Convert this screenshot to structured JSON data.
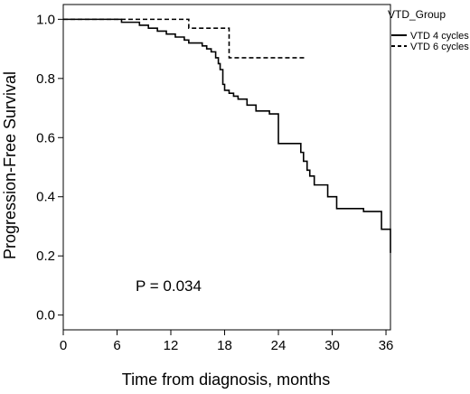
{
  "chart_data": {
    "type": "line",
    "subtype": "kaplan-meier step curve",
    "xlabel": "Time from diagnosis, months",
    "ylabel": "Progression-Free Survival",
    "xlim": [
      0,
      36.5
    ],
    "ylim": [
      -0.05,
      1.05
    ],
    "xticks": [
      0,
      6,
      12,
      18,
      24,
      30,
      36
    ],
    "yticks": [
      0.0,
      0.2,
      0.4,
      0.6,
      0.8,
      1.0
    ],
    "ytick_labels": [
      "0.0",
      "0.2",
      "0.4",
      "0.6",
      "0.8",
      "1.0"
    ],
    "grid": false,
    "legend": {
      "title": "VTD_Group",
      "position": "top-right, outside plot"
    },
    "annotation": "P = 0.034",
    "series": [
      {
        "name": "VTD 4 cycles",
        "style": "solid",
        "x": [
          0,
          6.5,
          8.5,
          9.5,
          10.5,
          11.5,
          12.5,
          13.5,
          14,
          15.5,
          16,
          16.5,
          17,
          17.3,
          17.5,
          17.8,
          18,
          18.5,
          19,
          19.5,
          20.5,
          21.5,
          23,
          24,
          26.5,
          26.8,
          27.2,
          27.5,
          28,
          29.5,
          30.5,
          33.5,
          35.5,
          36.5
        ],
        "y": [
          1.0,
          0.99,
          0.98,
          0.97,
          0.96,
          0.95,
          0.94,
          0.93,
          0.92,
          0.91,
          0.9,
          0.89,
          0.87,
          0.85,
          0.83,
          0.78,
          0.76,
          0.75,
          0.74,
          0.73,
          0.71,
          0.69,
          0.68,
          0.58,
          0.55,
          0.52,
          0.49,
          0.47,
          0.44,
          0.4,
          0.36,
          0.35,
          0.29,
          0.21
        ]
      },
      {
        "name": "VTD 6 cycles",
        "style": "dashed",
        "x": [
          0,
          6.5,
          14,
          18.5,
          27
        ],
        "y": [
          1.0,
          1.0,
          0.97,
          0.87,
          0.87
        ]
      }
    ]
  }
}
